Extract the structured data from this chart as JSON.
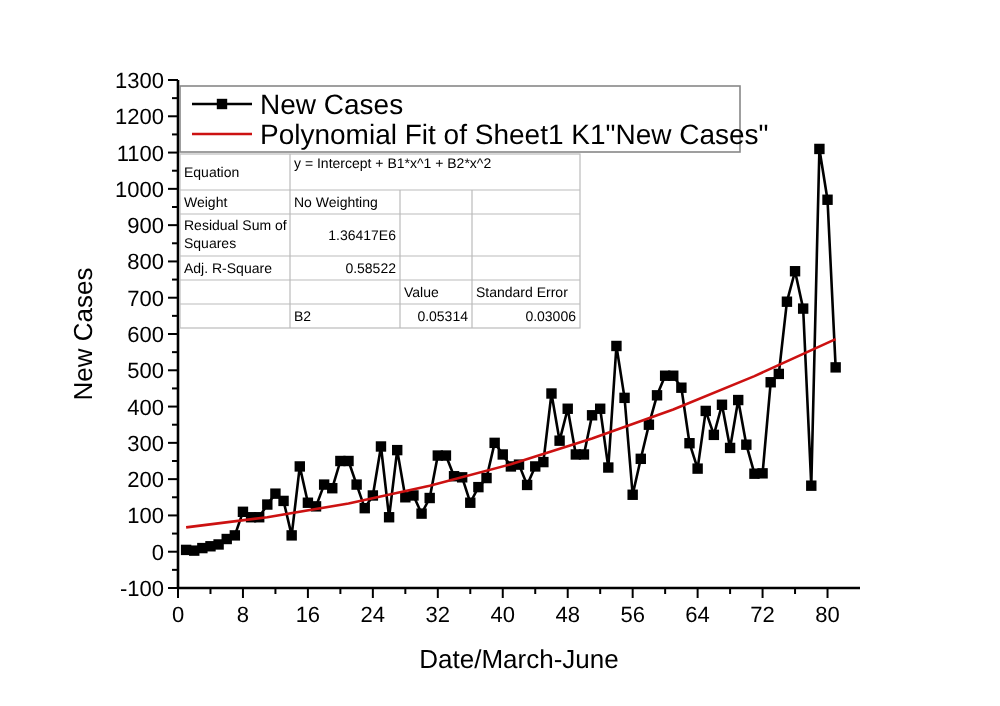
{
  "chart_data": {
    "type": "line",
    "xlabel": "Date/March-June",
    "ylabel": "New Cases",
    "xlim": [
      0,
      84
    ],
    "xticks": [
      0,
      8,
      16,
      24,
      32,
      40,
      48,
      56,
      64,
      72,
      80
    ],
    "ylim": [
      -100,
      1300
    ],
    "yticks": [
      -100,
      0,
      100,
      200,
      300,
      400,
      500,
      600,
      700,
      800,
      900,
      1000,
      1100,
      1200,
      1300
    ],
    "grid": false,
    "legend": "top left",
    "series": [
      {
        "name": "New Cases",
        "color": "#000000",
        "marker": "square",
        "x": [
          1,
          2,
          3,
          4,
          5,
          6,
          7,
          8,
          9,
          10,
          11,
          12,
          13,
          14,
          15,
          16,
          17,
          18,
          19,
          20,
          21,
          22,
          23,
          24,
          25,
          26,
          27,
          28,
          29,
          30,
          31,
          32,
          33,
          34,
          35,
          36,
          37,
          38,
          39,
          40,
          41,
          42,
          43,
          44,
          45,
          46,
          47,
          48,
          49,
          50,
          51,
          52,
          53,
          54,
          55,
          56,
          57,
          58,
          59,
          60,
          61,
          62,
          63,
          64,
          65,
          66,
          67,
          68,
          69,
          70,
          71,
          72,
          73,
          74,
          75,
          76,
          77,
          78,
          79,
          80,
          81
        ],
        "values": [
          5,
          3,
          10,
          15,
          20,
          35,
          45,
          110,
          95,
          95,
          130,
          160,
          140,
          45,
          235,
          135,
          125,
          185,
          175,
          250,
          250,
          185,
          120,
          155,
          290,
          95,
          280,
          150,
          155,
          105,
          148,
          265,
          265,
          208,
          205,
          135,
          178,
          203,
          300,
          268,
          235,
          240,
          184,
          235,
          247,
          436,
          306,
          394,
          268,
          268,
          376,
          394,
          232,
          567,
          424,
          157,
          256,
          350,
          431,
          485,
          485,
          452,
          299,
          229,
          388,
          322,
          405,
          286,
          418,
          295,
          215,
          216,
          467,
          490,
          689,
          773,
          670,
          182,
          1110,
          970,
          508
        ]
      },
      {
        "name": "Polynomial Fit of Sheet1 K1\"New Cases\"",
        "color": "#cc1111",
        "marker": "none",
        "x": [
          1,
          11,
          21,
          31,
          41,
          51,
          61,
          71,
          81
        ],
        "values": [
          67,
          95,
          133,
          182,
          241,
          312,
          392,
          484,
          586
        ]
      }
    ],
    "annotations": [
      "Equation",
      "y = Intercept + B1*x^1 + B2*x^2",
      "Weight",
      "No Weighting",
      "Residual Sum of Squares",
      "1.36417E6",
      "Adj. R-Square",
      "0.58522",
      "Value",
      "Standard Error",
      "B2",
      "0.05314",
      "0.03006"
    ]
  }
}
